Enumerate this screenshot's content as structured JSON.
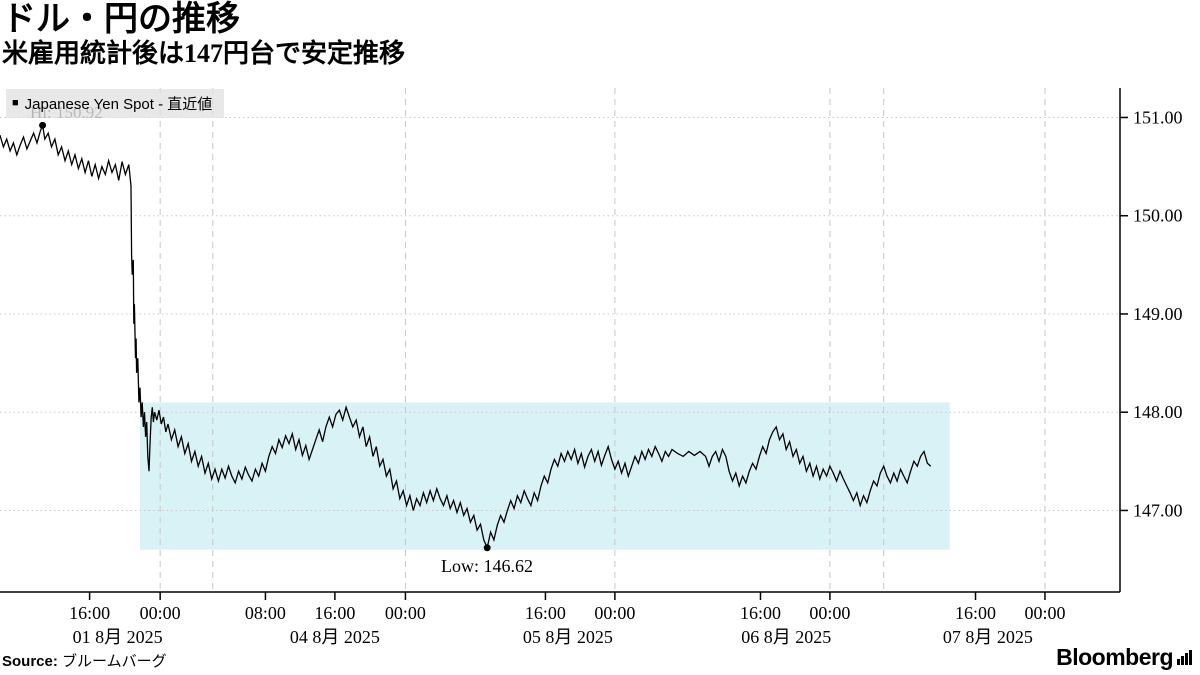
{
  "header": {
    "title": "ドル・円の推移",
    "subtitle": "米雇用統計後は147円台で安定推移"
  },
  "legend": {
    "marker": "■",
    "label": "Japanese Yen Spot - 直近値"
  },
  "footer": {
    "source_label": "Source:",
    "source_value": " ブルームバーグ",
    "brand": "Bloomberg",
    "brand_icon": "bloomberg-chart-icon"
  },
  "chart_data": {
    "type": "line",
    "title": "ドル・円の推移",
    "xlabel": "",
    "ylabel": "",
    "series_name": "Japanese Yen Spot",
    "line_color": "#000000",
    "grid": "on",
    "legend_position": "top-left",
    "ylim": [
      146.17,
      151.3
    ],
    "y_ticks": [
      {
        "value": 151.0,
        "label": "151.00"
      },
      {
        "value": 150.0,
        "label": "150.00"
      },
      {
        "value": 149.0,
        "label": "149.00"
      },
      {
        "value": 148.0,
        "label": "148.00"
      },
      {
        "value": 147.0,
        "label": "147.00"
      }
    ],
    "x_ticks": [
      {
        "pct": 8.0,
        "label": "16:00"
      },
      {
        "pct": 14.3,
        "label": "00:00"
      },
      {
        "pct": 23.7,
        "label": "08:00"
      },
      {
        "pct": 29.9,
        "label": "16:00"
      },
      {
        "pct": 36.2,
        "label": "00:00"
      },
      {
        "pct": 48.7,
        "label": "16:00"
      },
      {
        "pct": 54.9,
        "label": "00:00"
      },
      {
        "pct": 67.9,
        "label": "16:00"
      },
      {
        "pct": 74.1,
        "label": "00:00"
      },
      {
        "pct": 87.1,
        "label": "16:00"
      },
      {
        "pct": 93.3,
        "label": "00:00"
      }
    ],
    "date_ticks": [
      {
        "pct": 10.5,
        "label": "01 8月 2025"
      },
      {
        "pct": 29.9,
        "label": "04 8月 2025"
      },
      {
        "pct": 50.7,
        "label": "05 8月 2025"
      },
      {
        "pct": 70.2,
        "label": "06 8月 2025"
      },
      {
        "pct": 88.2,
        "label": "07 8月 2025"
      }
    ],
    "v_gridlines_pct": [
      14.3,
      19.0,
      36.2,
      54.9,
      74.1,
      78.9,
      93.3
    ],
    "band": {
      "x0_pct": 12.5,
      "x1_pct": 84.8,
      "y0": 146.6,
      "y1": 148.1,
      "color": "#d9f2f5"
    },
    "annotations": {
      "high": {
        "label": "Hi: 150.92",
        "x_pct": 3.8,
        "price": 150.92
      },
      "low": {
        "label": "Low: 146.62",
        "x_pct": 43.5,
        "price": 146.62
      }
    },
    "points": [
      [
        0,
        150.82
      ],
      [
        0.3,
        150.7
      ],
      [
        0.6,
        150.78
      ],
      [
        0.9,
        150.66
      ],
      [
        1.2,
        150.74
      ],
      [
        1.5,
        150.62
      ],
      [
        1.8,
        150.72
      ],
      [
        2.1,
        150.8
      ],
      [
        2.4,
        150.68
      ],
      [
        2.7,
        150.76
      ],
      [
        3.0,
        150.84
      ],
      [
        3.3,
        150.74
      ],
      [
        3.6,
        150.86
      ],
      [
        3.8,
        150.92
      ],
      [
        4.0,
        150.78
      ],
      [
        4.3,
        150.84
      ],
      [
        4.6,
        150.7
      ],
      [
        4.9,
        150.78
      ],
      [
        5.2,
        150.62
      ],
      [
        5.5,
        150.7
      ],
      [
        5.8,
        150.56
      ],
      [
        6.1,
        150.66
      ],
      [
        6.4,
        150.52
      ],
      [
        6.7,
        150.62
      ],
      [
        7.0,
        150.48
      ],
      [
        7.3,
        150.58
      ],
      [
        7.6,
        150.44
      ],
      [
        7.9,
        150.56
      ],
      [
        8.2,
        150.4
      ],
      [
        8.5,
        150.52
      ],
      [
        8.8,
        150.38
      ],
      [
        9.1,
        150.5
      ],
      [
        9.4,
        150.42
      ],
      [
        9.7,
        150.56
      ],
      [
        10.0,
        150.44
      ],
      [
        10.3,
        150.52
      ],
      [
        10.6,
        150.36
      ],
      [
        10.9,
        150.55
      ],
      [
        11.2,
        150.42
      ],
      [
        11.5,
        150.52
      ],
      [
        11.7,
        150.3
      ],
      [
        11.75,
        149.6
      ],
      [
        11.8,
        149.4
      ],
      [
        11.9,
        149.55
      ],
      [
        11.95,
        148.9
      ],
      [
        12.0,
        149.1
      ],
      [
        12.1,
        148.55
      ],
      [
        12.15,
        148.75
      ],
      [
        12.2,
        148.4
      ],
      [
        12.3,
        148.55
      ],
      [
        12.4,
        148.1
      ],
      [
        12.5,
        148.25
      ],
      [
        12.6,
        147.95
      ],
      [
        12.7,
        148.1
      ],
      [
        12.8,
        147.85
      ],
      [
        12.9,
        148.0
      ],
      [
        13.0,
        147.75
      ],
      [
        13.1,
        147.9
      ],
      [
        13.2,
        147.55
      ],
      [
        13.3,
        147.4
      ],
      [
        13.4,
        147.7
      ],
      [
        13.5,
        147.95
      ],
      [
        13.6,
        148.05
      ],
      [
        13.7,
        147.9
      ],
      [
        13.8,
        148.0
      ],
      [
        14.0,
        147.92
      ],
      [
        14.2,
        148.02
      ],
      [
        14.4,
        147.88
      ],
      [
        14.6,
        147.95
      ],
      [
        14.8,
        147.8
      ],
      [
        15.0,
        147.88
      ],
      [
        15.3,
        147.72
      ],
      [
        15.6,
        147.82
      ],
      [
        15.9,
        147.65
      ],
      [
        16.2,
        147.75
      ],
      [
        16.5,
        147.58
      ],
      [
        16.8,
        147.68
      ],
      [
        17.1,
        147.5
      ],
      [
        17.4,
        147.6
      ],
      [
        17.7,
        147.45
      ],
      [
        18.0,
        147.55
      ],
      [
        18.3,
        147.38
      ],
      [
        18.6,
        147.48
      ],
      [
        18.9,
        147.32
      ],
      [
        19.2,
        147.42
      ],
      [
        19.5,
        147.3
      ],
      [
        19.8,
        147.42
      ],
      [
        20.1,
        147.33
      ],
      [
        20.4,
        147.45
      ],
      [
        20.7,
        147.35
      ],
      [
        21.0,
        147.28
      ],
      [
        21.3,
        147.4
      ],
      [
        21.6,
        147.32
      ],
      [
        21.9,
        147.44
      ],
      [
        22.2,
        147.36
      ],
      [
        22.5,
        147.3
      ],
      [
        22.8,
        147.42
      ],
      [
        23.1,
        147.35
      ],
      [
        23.4,
        147.48
      ],
      [
        23.7,
        147.4
      ],
      [
        24.0,
        147.55
      ],
      [
        24.3,
        147.65
      ],
      [
        24.6,
        147.58
      ],
      [
        24.9,
        147.72
      ],
      [
        25.2,
        147.64
      ],
      [
        25.5,
        147.76
      ],
      [
        25.8,
        147.68
      ],
      [
        26.1,
        147.78
      ],
      [
        26.4,
        147.62
      ],
      [
        26.7,
        147.72
      ],
      [
        27.0,
        147.56
      ],
      [
        27.3,
        147.66
      ],
      [
        27.6,
        147.52
      ],
      [
        27.9,
        147.62
      ],
      [
        28.2,
        147.72
      ],
      [
        28.5,
        147.82
      ],
      [
        28.8,
        147.7
      ],
      [
        29.1,
        147.85
      ],
      [
        29.4,
        147.95
      ],
      [
        29.7,
        147.85
      ],
      [
        30.0,
        147.98
      ],
      [
        30.3,
        148.02
      ],
      [
        30.6,
        147.92
      ],
      [
        30.9,
        148.05
      ],
      [
        31.2,
        147.95
      ],
      [
        31.5,
        147.85
      ],
      [
        31.8,
        147.92
      ],
      [
        32.1,
        147.75
      ],
      [
        32.4,
        147.85
      ],
      [
        32.7,
        147.65
      ],
      [
        33.0,
        147.75
      ],
      [
        33.3,
        147.55
      ],
      [
        33.6,
        147.65
      ],
      [
        33.9,
        147.45
      ],
      [
        34.2,
        147.52
      ],
      [
        34.5,
        147.35
      ],
      [
        34.8,
        147.42
      ],
      [
        35.1,
        147.22
      ],
      [
        35.4,
        147.3
      ],
      [
        35.7,
        147.12
      ],
      [
        36.0,
        147.2
      ],
      [
        36.3,
        147.05
      ],
      [
        36.6,
        147.15
      ],
      [
        36.9,
        147.0
      ],
      [
        37.2,
        147.12
      ],
      [
        37.5,
        147.05
      ],
      [
        37.8,
        147.18
      ],
      [
        38.1,
        147.08
      ],
      [
        38.4,
        147.2
      ],
      [
        38.7,
        147.1
      ],
      [
        39.0,
        147.22
      ],
      [
        39.3,
        147.12
      ],
      [
        39.6,
        147.05
      ],
      [
        39.9,
        147.15
      ],
      [
        40.2,
        147.02
      ],
      [
        40.5,
        147.1
      ],
      [
        40.8,
        146.98
      ],
      [
        41.1,
        147.08
      ],
      [
        41.4,
        146.95
      ],
      [
        41.7,
        147.02
      ],
      [
        42.0,
        146.88
      ],
      [
        42.3,
        146.95
      ],
      [
        42.6,
        146.8
      ],
      [
        42.9,
        146.86
      ],
      [
        43.2,
        146.7
      ],
      [
        43.5,
        146.62
      ],
      [
        43.8,
        146.78
      ],
      [
        44.1,
        146.7
      ],
      [
        44.4,
        146.85
      ],
      [
        44.7,
        146.95
      ],
      [
        45.0,
        146.88
      ],
      [
        45.3,
        147.0
      ],
      [
        45.6,
        147.1
      ],
      [
        45.9,
        147.02
      ],
      [
        46.2,
        147.15
      ],
      [
        46.5,
        147.08
      ],
      [
        46.8,
        147.2
      ],
      [
        47.1,
        147.12
      ],
      [
        47.4,
        147.05
      ],
      [
        47.7,
        147.18
      ],
      [
        48.0,
        147.1
      ],
      [
        48.3,
        147.25
      ],
      [
        48.6,
        147.35
      ],
      [
        48.9,
        147.28
      ],
      [
        49.2,
        147.42
      ],
      [
        49.5,
        147.52
      ],
      [
        49.8,
        147.45
      ],
      [
        50.1,
        147.58
      ],
      [
        50.4,
        147.5
      ],
      [
        50.7,
        147.6
      ],
      [
        51.0,
        147.52
      ],
      [
        51.3,
        147.62
      ],
      [
        51.6,
        147.48
      ],
      [
        51.9,
        147.58
      ],
      [
        52.2,
        147.44
      ],
      [
        52.5,
        147.55
      ],
      [
        52.8,
        147.62
      ],
      [
        53.1,
        147.5
      ],
      [
        53.4,
        147.6
      ],
      [
        53.7,
        147.46
      ],
      [
        54.0,
        147.56
      ],
      [
        54.3,
        147.65
      ],
      [
        54.6,
        147.52
      ],
      [
        54.9,
        147.42
      ],
      [
        55.2,
        147.5
      ],
      [
        55.5,
        147.38
      ],
      [
        55.8,
        147.48
      ],
      [
        56.1,
        147.35
      ],
      [
        56.4,
        147.45
      ],
      [
        56.7,
        147.55
      ],
      [
        57.0,
        147.48
      ],
      [
        57.3,
        147.6
      ],
      [
        57.6,
        147.52
      ],
      [
        57.9,
        147.62
      ],
      [
        58.2,
        147.55
      ],
      [
        58.5,
        147.65
      ],
      [
        58.8,
        147.58
      ],
      [
        59.1,
        147.5
      ],
      [
        59.4,
        147.6
      ],
      [
        59.7,
        147.55
      ],
      [
        60.0,
        147.62
      ],
      [
        60.5,
        147.58
      ],
      [
        61.0,
        147.55
      ],
      [
        61.5,
        147.6
      ],
      [
        62.0,
        147.56
      ],
      [
        62.5,
        147.6
      ],
      [
        63.0,
        147.55
      ],
      [
        63.3,
        147.45
      ],
      [
        63.6,
        147.55
      ],
      [
        63.9,
        147.6
      ],
      [
        64.2,
        147.5
      ],
      [
        64.5,
        147.62
      ],
      [
        64.8,
        147.55
      ],
      [
        65.1,
        147.4
      ],
      [
        65.4,
        147.3
      ],
      [
        65.7,
        147.38
      ],
      [
        66.0,
        147.25
      ],
      [
        66.3,
        147.35
      ],
      [
        66.6,
        147.28
      ],
      [
        66.9,
        147.4
      ],
      [
        67.2,
        147.48
      ],
      [
        67.5,
        147.42
      ],
      [
        67.8,
        147.55
      ],
      [
        68.1,
        147.65
      ],
      [
        68.4,
        147.58
      ],
      [
        68.7,
        147.72
      ],
      [
        69.0,
        147.8
      ],
      [
        69.3,
        147.85
      ],
      [
        69.6,
        147.72
      ],
      [
        69.9,
        147.78
      ],
      [
        70.2,
        147.62
      ],
      [
        70.5,
        147.7
      ],
      [
        70.8,
        147.55
      ],
      [
        71.1,
        147.62
      ],
      [
        71.4,
        147.48
      ],
      [
        71.7,
        147.55
      ],
      [
        72.0,
        147.4
      ],
      [
        72.3,
        147.48
      ],
      [
        72.6,
        147.35
      ],
      [
        72.9,
        147.45
      ],
      [
        73.2,
        147.32
      ],
      [
        73.5,
        147.42
      ],
      [
        73.8,
        147.35
      ],
      [
        74.1,
        147.45
      ],
      [
        74.4,
        147.38
      ],
      [
        74.7,
        147.3
      ],
      [
        75.0,
        147.4
      ],
      [
        75.3,
        147.32
      ],
      [
        75.6,
        147.25
      ],
      [
        75.9,
        147.18
      ],
      [
        76.2,
        147.1
      ],
      [
        76.5,
        147.18
      ],
      [
        76.8,
        147.05
      ],
      [
        77.1,
        147.15
      ],
      [
        77.4,
        147.08
      ],
      [
        77.7,
        147.2
      ],
      [
        78.0,
        147.3
      ],
      [
        78.3,
        147.25
      ],
      [
        78.6,
        147.38
      ],
      [
        78.9,
        147.45
      ],
      [
        79.2,
        147.35
      ],
      [
        79.5,
        147.28
      ],
      [
        79.8,
        147.38
      ],
      [
        80.1,
        147.3
      ],
      [
        80.4,
        147.42
      ],
      [
        80.7,
        147.35
      ],
      [
        81.0,
        147.28
      ],
      [
        81.3,
        147.4
      ],
      [
        81.6,
        147.5
      ],
      [
        81.9,
        147.45
      ],
      [
        82.2,
        147.55
      ],
      [
        82.5,
        147.6
      ],
      [
        82.8,
        147.48
      ],
      [
        83.1,
        147.45
      ]
    ]
  }
}
